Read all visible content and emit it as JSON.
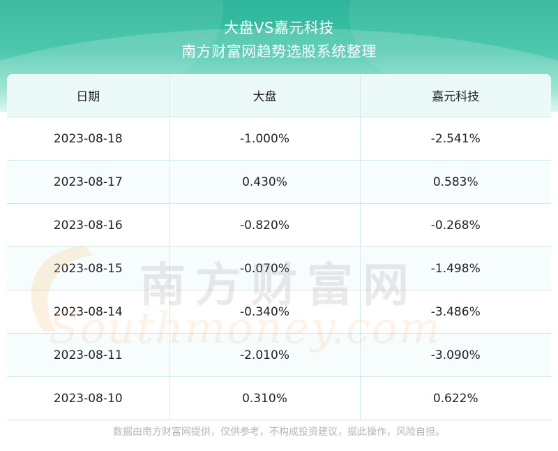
{
  "header": {
    "title_line1": "大盘VS嘉元科技",
    "title_line2": "南方财富网趋势选股系统整理"
  },
  "table": {
    "columns": [
      "日期",
      "大盘",
      "嘉元科技"
    ],
    "rows": [
      [
        "2023-08-18",
        "-1.000%",
        "-2.541%"
      ],
      [
        "2023-08-17",
        "0.430%",
        "0.583%"
      ],
      [
        "2023-08-16",
        "-0.820%",
        "-0.268%"
      ],
      [
        "2023-08-15",
        "-0.070%",
        "-1.498%"
      ],
      [
        "2023-08-14",
        "-0.340%",
        "-3.486%"
      ],
      [
        "2023-08-11",
        "-2.010%",
        "-3.090%"
      ],
      [
        "2023-08-10",
        "0.310%",
        "0.622%"
      ]
    ]
  },
  "watermark": {
    "cn": "南方财富网",
    "en": "Southmoney.com"
  },
  "footer": {
    "disclaimer": "数据由南方财富网提供，仅供参考，不构成投资建议，据此操作，风险自担。"
  },
  "colors": {
    "header_top": "#2fb59a",
    "header_bottom": "#d6f5ec",
    "table_header_bg": "#ebfaf8",
    "grid_line": "#d2e8e6"
  }
}
